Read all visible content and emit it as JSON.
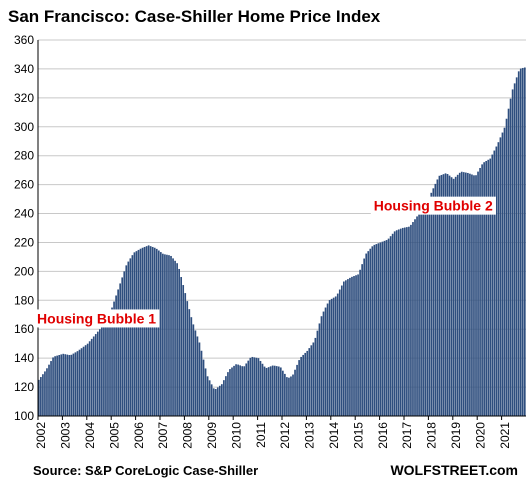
{
  "chart_data": {
    "type": "bar",
    "title": "San Francisco: Case-Shiller Home Price Index",
    "source": "Source: S&P CoreLogic Case-Shiller",
    "brand": "WOLFSTREET.com",
    "bar_color": "#2e4e7e",
    "annotation_color": "#e00000",
    "grid": true,
    "ylim": [
      100,
      360
    ],
    "yticks": [
      100,
      120,
      140,
      160,
      180,
      200,
      220,
      240,
      260,
      280,
      300,
      320,
      340,
      360
    ],
    "x_tick_labels": [
      "2002",
      "2003",
      "2004",
      "2005",
      "2006",
      "2007",
      "2008",
      "2009",
      "2010",
      "2011",
      "2012",
      "2013",
      "2014",
      "2015",
      "2016",
      "2017",
      "2018",
      "2019",
      "2020",
      "2021"
    ],
    "annotations": [
      {
        "text": "Housing Bubble 1",
        "x": 2004.4,
        "y": 164
      },
      {
        "text": "Housing Bubble 2",
        "x": 2018.2,
        "y": 242
      }
    ],
    "anchors": [
      [
        2002.0,
        125
      ],
      [
        2002.3,
        132
      ],
      [
        2002.6,
        141
      ],
      [
        2003.0,
        143
      ],
      [
        2003.3,
        142
      ],
      [
        2003.6,
        145
      ],
      [
        2004.0,
        150
      ],
      [
        2004.5,
        160
      ],
      [
        2005.0,
        175
      ],
      [
        2005.3,
        190
      ],
      [
        2005.6,
        205
      ],
      [
        2005.9,
        213
      ],
      [
        2006.2,
        216
      ],
      [
        2006.5,
        218
      ],
      [
        2006.8,
        216
      ],
      [
        2007.1,
        212
      ],
      [
        2007.4,
        211
      ],
      [
        2007.7,
        205
      ],
      [
        2008.0,
        185
      ],
      [
        2008.3,
        165
      ],
      [
        2008.6,
        150
      ],
      [
        2008.9,
        128
      ],
      [
        2009.2,
        118
      ],
      [
        2009.5,
        122
      ],
      [
        2009.8,
        132
      ],
      [
        2010.1,
        136
      ],
      [
        2010.4,
        134
      ],
      [
        2010.7,
        141
      ],
      [
        2011.0,
        140
      ],
      [
        2011.3,
        133
      ],
      [
        2011.6,
        135
      ],
      [
        2011.9,
        134
      ],
      [
        2012.2,
        126
      ],
      [
        2012.4,
        128
      ],
      [
        2012.7,
        140
      ],
      [
        2013.0,
        145
      ],
      [
        2013.3,
        152
      ],
      [
        2013.6,
        170
      ],
      [
        2013.9,
        180
      ],
      [
        2014.2,
        183
      ],
      [
        2014.5,
        193
      ],
      [
        2014.8,
        196
      ],
      [
        2015.1,
        198
      ],
      [
        2015.4,
        212
      ],
      [
        2015.7,
        218
      ],
      [
        2016.0,
        220
      ],
      [
        2016.3,
        222
      ],
      [
        2016.6,
        228
      ],
      [
        2016.9,
        230
      ],
      [
        2017.2,
        231
      ],
      [
        2017.5,
        238
      ],
      [
        2017.8,
        243
      ],
      [
        2018.1,
        255
      ],
      [
        2018.4,
        266
      ],
      [
        2018.7,
        268
      ],
      [
        2019.0,
        264
      ],
      [
        2019.3,
        269
      ],
      [
        2019.6,
        268
      ],
      [
        2019.9,
        266
      ],
      [
        2020.2,
        275
      ],
      [
        2020.5,
        278
      ],
      [
        2020.8,
        288
      ],
      [
        2021.1,
        300
      ],
      [
        2021.4,
        325
      ],
      [
        2021.7,
        340
      ],
      [
        2021.9,
        341
      ]
    ]
  }
}
